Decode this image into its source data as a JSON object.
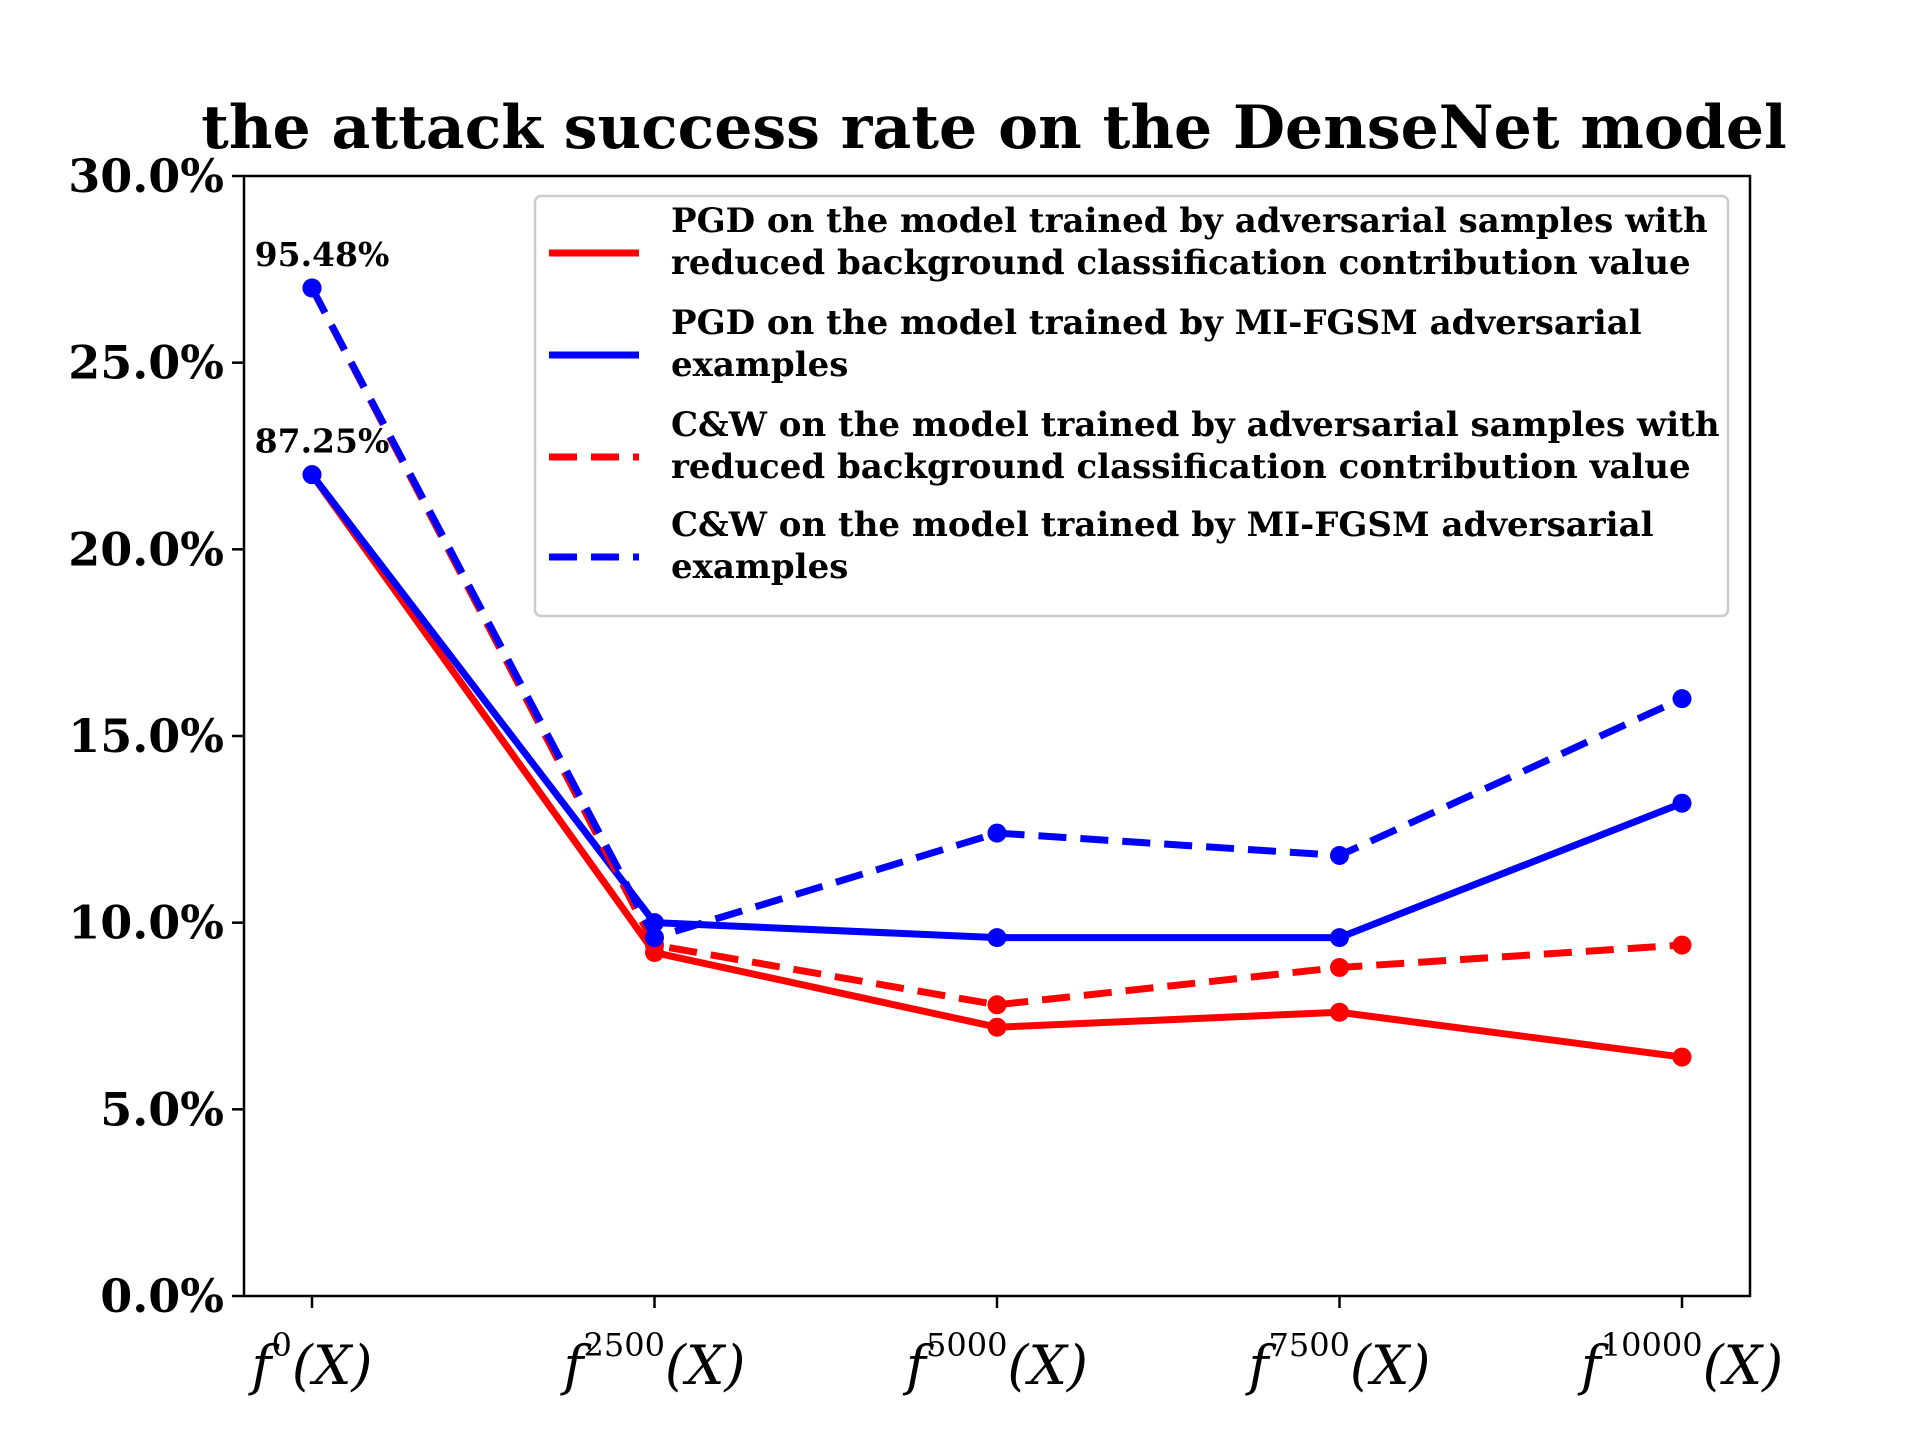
{
  "chart_data": {
    "type": "line",
    "title": "the attack success rate on the DenseNet model",
    "xlabel": "",
    "ylabel": "",
    "categories": [
      {
        "base": "f",
        "sup": "0",
        "tail": "(X)"
      },
      {
        "base": "f",
        "sup": "2500",
        "tail": "(X)"
      },
      {
        "base": "f",
        "sup": "5000",
        "tail": "(X)"
      },
      {
        "base": "f",
        "sup": "7500",
        "tail": "(X)"
      },
      {
        "base": "f",
        "sup": "10000",
        "tail": "(X)"
      }
    ],
    "ylim": [
      0,
      30
    ],
    "yticks": [
      0,
      5,
      10,
      15,
      20,
      25,
      30
    ],
    "ytick_labels": [
      "0.0%",
      "5.0%",
      "10.0%",
      "15.0%",
      "20.0%",
      "25.0%",
      "30.0%"
    ],
    "grid": false,
    "legend_position": "top-right",
    "series": [
      {
        "name": "PGD on the model trained by adversarial samples with reduced background classification contribution value",
        "legend_lines": [
          "PGD on the model trained by adversarial samples with",
          "reduced background classification contribution value"
        ],
        "color": "#ff0000",
        "style": "solid",
        "values": [
          22.0,
          9.2,
          7.2,
          7.6,
          6.4
        ]
      },
      {
        "name": "PGD on the model trained by MI-FGSM adversarial examples",
        "legend_lines": [
          "PGD on the model trained by MI-FGSM adversarial",
          "examples"
        ],
        "color": "#0000ff",
        "style": "solid",
        "values": [
          22.0,
          10.0,
          9.6,
          9.6,
          13.2
        ]
      },
      {
        "name": "C&W on the model trained by adversarial samples with reduced background classification contribution value",
        "legend_lines": [
          "C&W on the model trained by adversarial samples with",
          "reduced background classification contribution value"
        ],
        "color": "#ff0000",
        "style": "dashed",
        "values": [
          27.0,
          9.4,
          7.8,
          8.8,
          9.4
        ]
      },
      {
        "name": "C&W on the model trained by MI-FGSM adversarial examples",
        "legend_lines": [
          "C&W on the model trained by MI-FGSM adversarial",
          "examples"
        ],
        "color": "#0000ff",
        "style": "dashed",
        "values": [
          27.0,
          9.6,
          12.4,
          11.8,
          16.0
        ]
      }
    ],
    "annotations": [
      {
        "text": "95.48%",
        "x_index": 0,
        "y": 27.0
      },
      {
        "text": "87.25%",
        "x_index": 0,
        "y": 22.0
      }
    ]
  }
}
